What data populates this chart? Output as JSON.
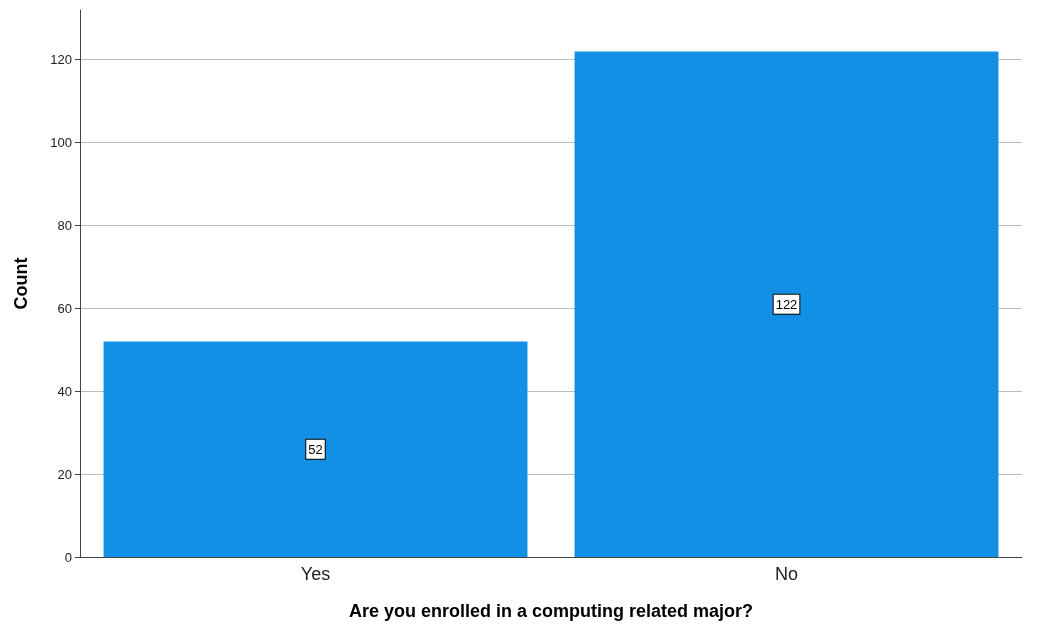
{
  "chart_data": {
    "type": "bar",
    "xlabel": "Are you enrolled in a computing related major?",
    "ylabel": "Count",
    "categories": [
      "Yes",
      "No"
    ],
    "values": [
      52,
      122
    ],
    "color": "#1290e6",
    "ylim": [
      0,
      132
    ],
    "yticks": [
      0,
      20,
      40,
      60,
      80,
      100,
      120
    ],
    "grid": "y",
    "data_labels": true
  }
}
